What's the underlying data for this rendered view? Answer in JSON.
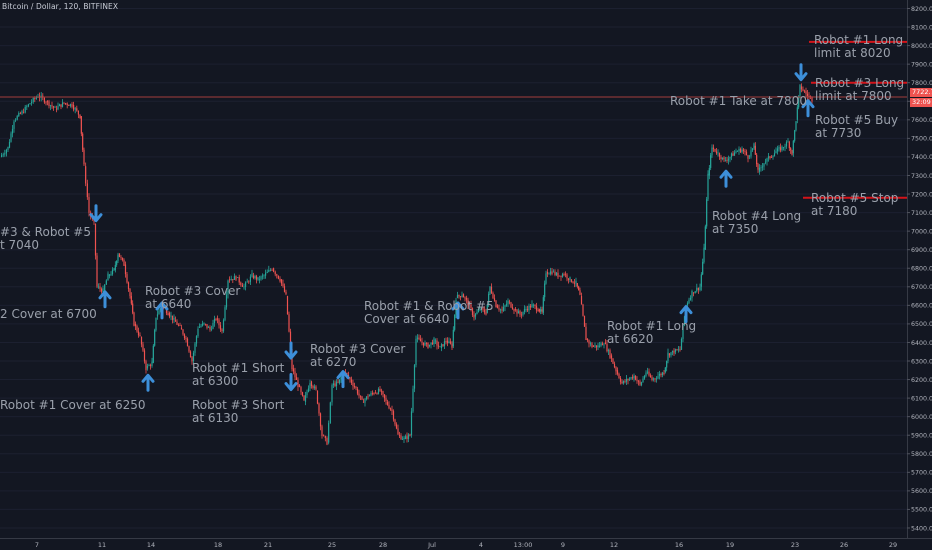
{
  "symbol": "Bitcoin / Dollar, 120, BITFINEX",
  "colors": {
    "background": "#131722",
    "up": "#26a69a",
    "down": "#ef5350",
    "arrow": "#3d8fd9",
    "redline": "#d3141a",
    "label": "#9aa0ab",
    "axis": "#b2b5be",
    "hline": "#a33c3c"
  },
  "chart_data": {
    "type": "candlestick",
    "title": "Bitcoin / Dollar, 120, BITFINEX",
    "ylim": [
      5300,
      8250
    ],
    "y_ticks": [
      "5400.0",
      "5500.0",
      "5600.0",
      "5700.0",
      "5800.0",
      "5900.0",
      "6000.0",
      "6100.0",
      "6200.0",
      "6300.0",
      "6400.0",
      "6500.0",
      "6600.0",
      "6700.0",
      "6800.0",
      "6900.0",
      "7000.0",
      "7100.0",
      "7200.0",
      "7300.0",
      "7400.0",
      "7500.0",
      "7600.0",
      "7700.0",
      "7800.0",
      "7900.0",
      "8000.0",
      "8100.0",
      "8200.0"
    ],
    "x_ticks": [
      "7",
      "11",
      "14",
      "18",
      "21",
      "25",
      "28",
      "Jul",
      "4",
      "13:00",
      "9",
      "12",
      "16",
      "19",
      "23",
      "26",
      "29"
    ],
    "price_labels": [
      "7722.7",
      "32:09"
    ],
    "price_line": 7722.7,
    "path": [
      [
        0,
        7400
      ],
      [
        8,
        7450
      ],
      [
        14,
        7600
      ],
      [
        22,
        7640
      ],
      [
        30,
        7690
      ],
      [
        38,
        7730
      ],
      [
        46,
        7700
      ],
      [
        55,
        7660
      ],
      [
        64,
        7690
      ],
      [
        72,
        7680
      ],
      [
        80,
        7620
      ],
      [
        84,
        7350
      ],
      [
        89,
        7100
      ],
      [
        94,
        7040
      ],
      [
        97,
        6700
      ],
      [
        103,
        6680
      ],
      [
        108,
        6760
      ],
      [
        114,
        6790
      ],
      [
        118,
        6880
      ],
      [
        124,
        6820
      ],
      [
        130,
        6650
      ],
      [
        134,
        6500
      ],
      [
        140,
        6430
      ],
      [
        146,
        6260
      ],
      [
        152,
        6290
      ],
      [
        156,
        6540
      ],
      [
        162,
        6600
      ],
      [
        168,
        6560
      ],
      [
        174,
        6520
      ],
      [
        180,
        6480
      ],
      [
        186,
        6420
      ],
      [
        192,
        6300
      ],
      [
        198,
        6480
      ],
      [
        204,
        6500
      ],
      [
        210,
        6470
      ],
      [
        216,
        6530
      ],
      [
        222,
        6460
      ],
      [
        228,
        6740
      ],
      [
        236,
        6750
      ],
      [
        244,
        6700
      ],
      [
        252,
        6760
      ],
      [
        258,
        6740
      ],
      [
        264,
        6760
      ],
      [
        272,
        6800
      ],
      [
        280,
        6740
      ],
      [
        286,
        6650
      ],
      [
        292,
        6260
      ],
      [
        298,
        6170
      ],
      [
        304,
        6080
      ],
      [
        310,
        6190
      ],
      [
        316,
        6140
      ],
      [
        322,
        5900
      ],
      [
        327,
        5860
      ],
      [
        332,
        6170
      ],
      [
        338,
        6180
      ],
      [
        344,
        6240
      ],
      [
        350,
        6200
      ],
      [
        356,
        6150
      ],
      [
        362,
        6080
      ],
      [
        368,
        6110
      ],
      [
        374,
        6130
      ],
      [
        380,
        6140
      ],
      [
        386,
        6080
      ],
      [
        392,
        6030
      ],
      [
        398,
        5900
      ],
      [
        404,
        5880
      ],
      [
        410,
        5900
      ],
      [
        416,
        6420
      ],
      [
        422,
        6400
      ],
      [
        428,
        6380
      ],
      [
        434,
        6410
      ],
      [
        440,
        6370
      ],
      [
        446,
        6410
      ],
      [
        452,
        6380
      ],
      [
        456,
        6640
      ],
      [
        462,
        6660
      ],
      [
        468,
        6610
      ],
      [
        474,
        6540
      ],
      [
        480,
        6580
      ],
      [
        486,
        6560
      ],
      [
        490,
        6700
      ],
      [
        496,
        6600
      ],
      [
        502,
        6570
      ],
      [
        508,
        6620
      ],
      [
        514,
        6580
      ],
      [
        520,
        6550
      ],
      [
        526,
        6580
      ],
      [
        532,
        6600
      ],
      [
        538,
        6580
      ],
      [
        542,
        6560
      ],
      [
        546,
        6780
      ],
      [
        552,
        6780
      ],
      [
        558,
        6760
      ],
      [
        564,
        6770
      ],
      [
        570,
        6740
      ],
      [
        576,
        6720
      ],
      [
        580,
        6650
      ],
      [
        586,
        6420
      ],
      [
        592,
        6380
      ],
      [
        598,
        6380
      ],
      [
        604,
        6400
      ],
      [
        610,
        6330
      ],
      [
        616,
        6250
      ],
      [
        622,
        6180
      ],
      [
        628,
        6200
      ],
      [
        634,
        6220
      ],
      [
        640,
        6170
      ],
      [
        646,
        6240
      ],
      [
        652,
        6200
      ],
      [
        658,
        6220
      ],
      [
        664,
        6240
      ],
      [
        668,
        6340
      ],
      [
        674,
        6350
      ],
      [
        680,
        6360
      ],
      [
        686,
        6600
      ],
      [
        692,
        6670
      ],
      [
        700,
        6700
      ],
      [
        704,
        6900
      ],
      [
        708,
        7300
      ],
      [
        712,
        7450
      ],
      [
        718,
        7420
      ],
      [
        724,
        7380
      ],
      [
        730,
        7400
      ],
      [
        736,
        7430
      ],
      [
        742,
        7440
      ],
      [
        748,
        7400
      ],
      [
        754,
        7460
      ],
      [
        758,
        7320
      ],
      [
        764,
        7370
      ],
      [
        770,
        7400
      ],
      [
        776,
        7430
      ],
      [
        782,
        7450
      ],
      [
        788,
        7480
      ],
      [
        792,
        7420
      ],
      [
        796,
        7600
      ],
      [
        800,
        7780
      ],
      [
        806,
        7740
      ],
      [
        812,
        7710
      ]
    ],
    "hlines": [
      {
        "value": 8020,
        "label": "Robot #1 Long limit at 8020"
      },
      {
        "value": 7800,
        "label": "Robot #3 Long limit at 7800"
      },
      {
        "value": 7180,
        "label": "Robot #5 Stop at 7180"
      }
    ],
    "arrows": [
      {
        "x": 96,
        "price": 7040,
        "dir": "down"
      },
      {
        "x": 105,
        "price": 6700,
        "dir": "up"
      },
      {
        "x": 148,
        "price": 6250,
        "dir": "up"
      },
      {
        "x": 162,
        "price": 6640,
        "dir": "up"
      },
      {
        "x": 291,
        "price": 6300,
        "dir": "down"
      },
      {
        "x": 291,
        "price": 6130,
        "dir": "down"
      },
      {
        "x": 343,
        "price": 6270,
        "dir": "up"
      },
      {
        "x": 458,
        "price": 6640,
        "dir": "up"
      },
      {
        "x": 686,
        "price": 6620,
        "dir": "up"
      },
      {
        "x": 726,
        "price": 7350,
        "dir": "up"
      },
      {
        "x": 801,
        "price": 7800,
        "dir": "down"
      },
      {
        "x": 808,
        "price": 7730,
        "dir": "up"
      }
    ],
    "annotations": [
      {
        "id": "a1",
        "lines": [
          "#3 & Robot #5",
          "t 7040"
        ]
      },
      {
        "id": "a2",
        "lines": [
          "2 Cover at 6700"
        ]
      },
      {
        "id": "a3",
        "lines": [
          "Robot #1 Cover at 6250"
        ]
      },
      {
        "id": "a4",
        "lines": [
          "Robot #3 Cover",
          "at 6640"
        ]
      },
      {
        "id": "a5",
        "lines": [
          "Robot #1 Short",
          "at 6300"
        ]
      },
      {
        "id": "a6",
        "lines": [
          "Robot #3 Short",
          "at 6130"
        ]
      },
      {
        "id": "a7",
        "lines": [
          "Robot #3 Cover",
          "at 6270"
        ]
      },
      {
        "id": "a8",
        "lines": [
          "Robot #1 & Robot #5",
          "Cover at 6640"
        ]
      },
      {
        "id": "a9",
        "lines": [
          "Robot #1 Long",
          "at 6620"
        ]
      },
      {
        "id": "a10",
        "lines": [
          "Robot #4 Long",
          "at 7350"
        ]
      },
      {
        "id": "a11",
        "lines": [
          "Robot #1 Take at 7800"
        ]
      },
      {
        "id": "a12",
        "lines": [
          "Robot #5 Buy",
          "at 7730"
        ]
      },
      {
        "id": "a13",
        "lines": [
          "Robot #1 Long",
          "limit at 8020"
        ]
      },
      {
        "id": "a14",
        "lines": [
          "Robot #3 Long",
          "limit at 7800"
        ]
      },
      {
        "id": "a15",
        "lines": [
          "Robot #5 Stop",
          "at 7180"
        ]
      }
    ]
  }
}
